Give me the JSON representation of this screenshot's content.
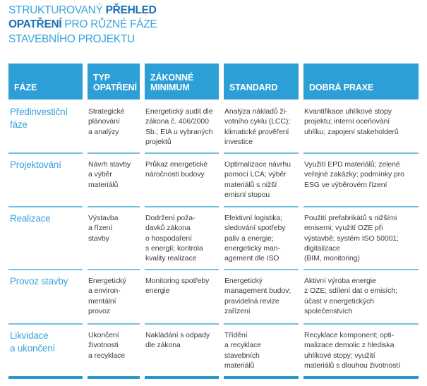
{
  "title": {
    "line1_light": "STRUKTUROVANÝ ",
    "line1_dark": "PŘEHLED",
    "line2_dark": "OPATŘENÍ",
    "line2_light": " PRO RŮZNÉ FÁZE",
    "line3_light": "STAVEBNÍHO PROJEKTU"
  },
  "colors": {
    "header_bg": "#2c9fd6",
    "divider": "#74c0e8",
    "bottom_border": "#2b96d2",
    "phase_text": "#38a4dc",
    "title_light": "#39a5dc",
    "title_dark": "#1a70b7",
    "body_text": "#3e3e3e"
  },
  "table": {
    "headers": [
      "FÁZE",
      "TYP\nOPATŘENÍ",
      "ZÁKONNÉ\nMINIMUM",
      "STANDARD",
      "DOBRÁ PRAXE"
    ],
    "rows": [
      {
        "faze": "Předinvestiční\nfáze",
        "typ": "Strategické\nplánování\na analýzy",
        "zakonne": "Energetický audit dle\nzákona č. 406/2000\nSb.; EIA u vybraných\nprojektů",
        "standard": "Analýza nákladů ži-\nvotního cyklu (LCC);\nklimatické prověření\ninvestice",
        "dobra": "Kvantifikace uhlíkové stopy\nprojektu; interní oceňování\nuhlíku; zapojení stakeholderů"
      },
      {
        "faze": "Projektování",
        "typ": "Návrh stavby\na výběr\nmateriálů",
        "zakonne": "Průkaz energetické\nnáročnosti budovy",
        "standard": "Optimalizace návrhu\npomocí LCA; výběr\nmateriálů s nižší\nemisní stopou",
        "dobra": "Využití EPD materiálů; zelené\nveřejné zakázky; podmínky pro\nESG ve výběrovém řízení"
      },
      {
        "faze": "Realizace",
        "typ": "Výstavba\na řízení\nstavby",
        "zakonne": "Dodržení poža-\ndavků zákona\no hospodaření\ns energií; kontrola\nkvality realizace",
        "standard": "Efektivní logistika;\nsledování spotřeby\npaliv a energie;\nenergetický man-\nagement dle ISO",
        "dobra": "Použití prefabrikátů s nižšími\nemisemi; využití OZE při\nvýstavbě; systém ISO 50001;\ndigitalizace\n(BIM, monitoring)"
      },
      {
        "faze": "Provoz stavby",
        "typ": "Energetický\na environ-\nmentální\nprovoz",
        "zakonne": "Monitoring spotřeby\nenergie",
        "standard": "Energetický\nmanagement budov;\npravidelná revize\nzařízení",
        "dobra": "Aktivní výroba energie\nz OZE; sdílení dat o emisích;\núčast v energetických\nspolečenstvích"
      },
      {
        "faze": "Likvidace\na ukončení",
        "typ": "Ukončení\nživotnosti\na recyklace",
        "zakonne": "Nakládání s odpady\ndle zákona",
        "standard": "Třídění\na recyklace\nstavebních\nmateriálů",
        "dobra": "Recyklace komponent; opti-\nmalizace demolic z hlediska\nuhlíkové stopy; využití\nmateriálů s dlouhou životností"
      }
    ]
  }
}
